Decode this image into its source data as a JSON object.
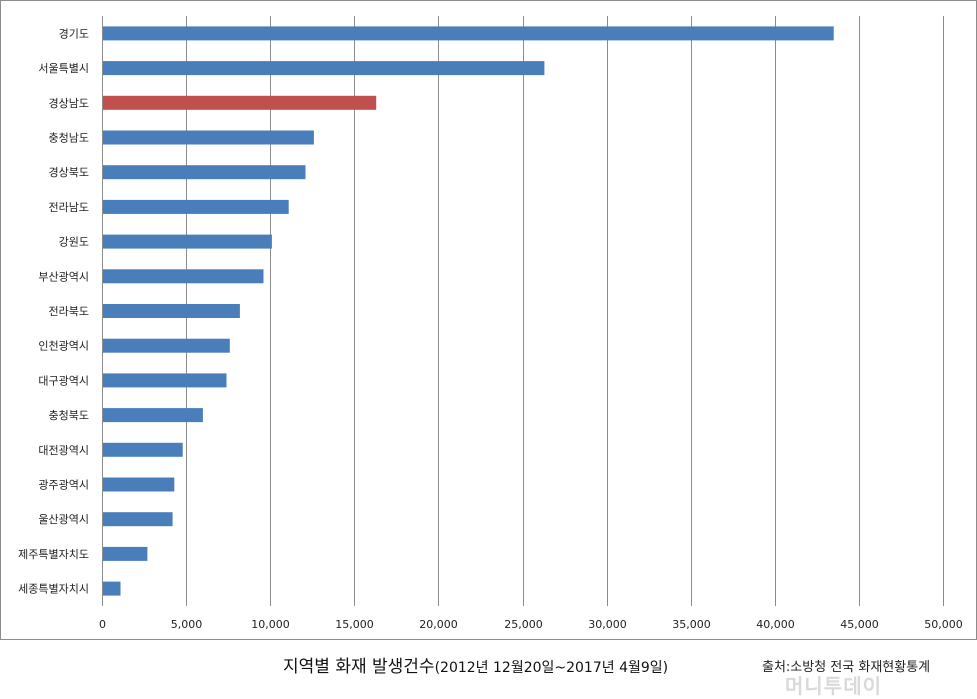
{
  "chart_data": {
    "type": "bar",
    "orientation": "horizontal",
    "categories": [
      "경기도",
      "서울특별시",
      "경상남도",
      "충청남도",
      "경상북도",
      "전라남도",
      "강원도",
      "부산광역시",
      "전라북도",
      "인천광역시",
      "대구광역시",
      "충청북도",
      "대전광역시",
      "광주광역시",
      "울산광역시",
      "제주특별자치도",
      "세종특별자치시"
    ],
    "values": [
      43500,
      26300,
      16300,
      12600,
      12100,
      11100,
      10100,
      9600,
      8200,
      7600,
      7400,
      6000,
      4800,
      4300,
      4200,
      2700,
      1100
    ],
    "highlight_index": 2,
    "xlim": [
      0,
      50000
    ],
    "xticks": [
      "0",
      "5,000",
      "10,000",
      "15,000",
      "20,000",
      "25,000",
      "30,000",
      "35,000",
      "40,000",
      "45,000",
      "50,000"
    ],
    "grid": true,
    "title": "지역별 화재 발생건수",
    "subtitle": "(2012년 12월20일~2017년 4월9일)",
    "colors": {
      "bar": "#4a7ebb",
      "highlight": "#c0504d",
      "grid": "#8c8c8c"
    }
  },
  "source_note": "출처:소방청 전국 화재현황통계",
  "watermark": "머니투데이"
}
